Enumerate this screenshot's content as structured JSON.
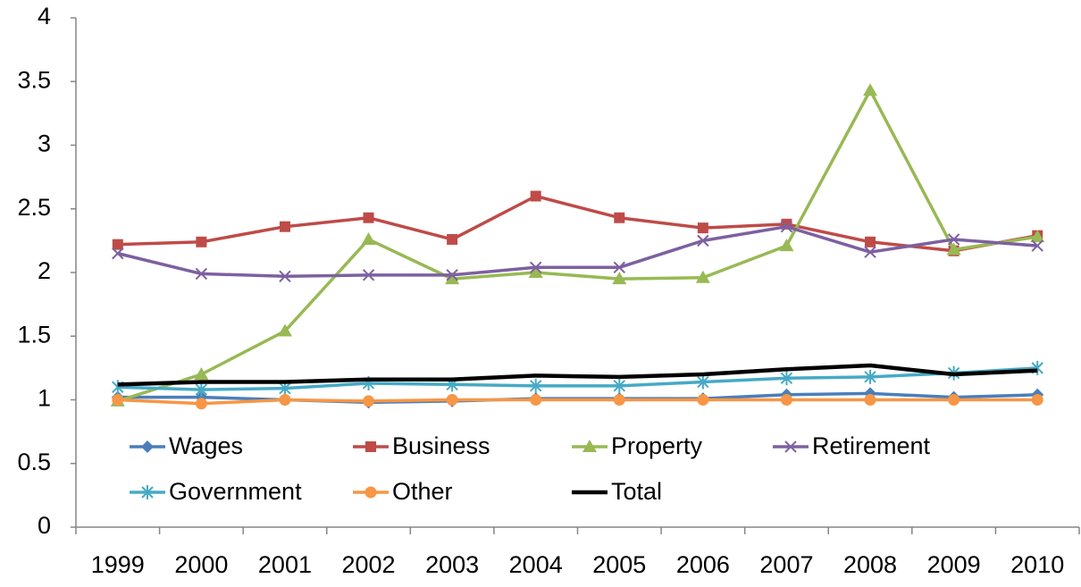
{
  "chart_data": {
    "type": "line",
    "categories": [
      "1999",
      "2000",
      "2001",
      "2002",
      "2003",
      "2004",
      "2005",
      "2006",
      "2007",
      "2008",
      "2009",
      "2010"
    ],
    "series": [
      {
        "name": "Wages",
        "color": "#4a7ebb",
        "marker": "diamond",
        "values": [
          1.02,
          1.02,
          1.0,
          0.98,
          0.99,
          1.01,
          1.01,
          1.01,
          1.04,
          1.05,
          1.02,
          1.04
        ]
      },
      {
        "name": "Business",
        "color": "#be4b48",
        "marker": "square",
        "values": [
          2.22,
          2.24,
          2.36,
          2.43,
          2.26,
          2.6,
          2.43,
          2.35,
          2.38,
          2.24,
          2.17,
          2.29
        ]
      },
      {
        "name": "Property",
        "color": "#98b954",
        "marker": "triangle",
        "values": [
          0.99,
          1.2,
          1.54,
          2.26,
          1.95,
          2.0,
          1.95,
          1.96,
          2.21,
          3.43,
          2.18,
          2.28
        ]
      },
      {
        "name": "Retirement",
        "color": "#7d60a0",
        "marker": "x",
        "values": [
          2.15,
          1.99,
          1.97,
          1.98,
          1.98,
          2.04,
          2.04,
          2.25,
          2.36,
          2.16,
          2.26,
          2.21
        ]
      },
      {
        "name": "Government",
        "color": "#46aac5",
        "marker": "asterisk",
        "values": [
          1.1,
          1.08,
          1.09,
          1.13,
          1.12,
          1.11,
          1.11,
          1.14,
          1.17,
          1.18,
          1.21,
          1.25
        ]
      },
      {
        "name": "Other",
        "color": "#f79646",
        "marker": "circle",
        "values": [
          1.0,
          0.97,
          1.0,
          0.99,
          1.0,
          1.0,
          1.0,
          1.0,
          1.0,
          1.0,
          1.0,
          1.0
        ]
      },
      {
        "name": "Total",
        "color": "#000000",
        "marker": "none",
        "values": [
          1.12,
          1.14,
          1.14,
          1.16,
          1.16,
          1.19,
          1.18,
          1.2,
          1.24,
          1.27,
          1.2,
          1.23
        ]
      }
    ],
    "ylim": [
      0,
      4
    ],
    "yticks": [
      0,
      0.5,
      1,
      1.5,
      2,
      2.5,
      3,
      3.5,
      4
    ],
    "grid": false,
    "legend": "bottom"
  }
}
